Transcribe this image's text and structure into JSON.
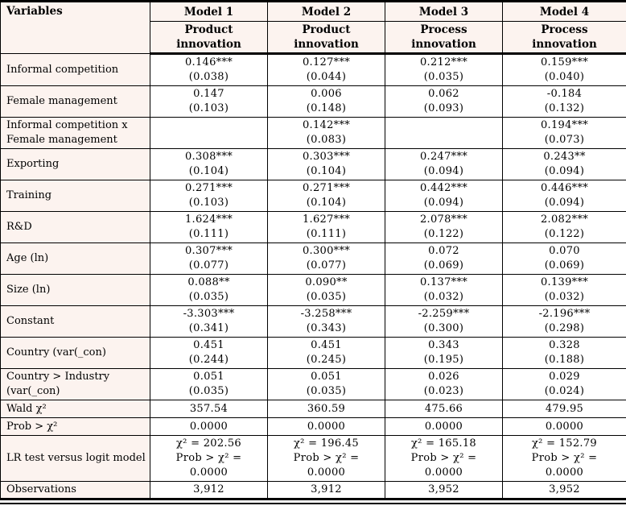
{
  "colors": {
    "label_background": "#fcf3ef",
    "data_background": "#ffffff",
    "border": "#000000",
    "text": "#000000"
  },
  "table": {
    "header": {
      "variables_label": "Variables",
      "models": [
        {
          "name": "Model 1",
          "outcome": [
            "Product",
            "innovation"
          ]
        },
        {
          "name": "Model 2",
          "outcome": [
            "Product",
            "innovation"
          ]
        },
        {
          "name": "Model 3",
          "outcome": [
            "Process",
            "innovation"
          ]
        },
        {
          "name": "Model 4",
          "outcome": [
            "Process",
            "innovation"
          ]
        }
      ]
    },
    "rows": [
      {
        "label": "Informal competition",
        "cells": [
          [
            "0.146***",
            "(0.038)"
          ],
          [
            "0.127***",
            "(0.044)"
          ],
          [
            "0.212***",
            "(0.035)"
          ],
          [
            "0.159***",
            "(0.040)"
          ]
        ]
      },
      {
        "label": "Female management",
        "cells": [
          [
            "0.147",
            "(0.103)"
          ],
          [
            "0.006",
            "(0.148)"
          ],
          [
            "0.062",
            "(0.093)"
          ],
          [
            "-0.184",
            "(0.132)"
          ]
        ]
      },
      {
        "label": "Informal competition x Female management",
        "cells": [
          [],
          [
            "0.142***",
            "(0.083)"
          ],
          [],
          [
            "0.194***",
            "(0.073)"
          ]
        ]
      },
      {
        "label": "Exporting",
        "cells": [
          [
            "0.308***",
            "(0.104)"
          ],
          [
            "0.303***",
            "(0.104)"
          ],
          [
            "0.247***",
            "(0.094)"
          ],
          [
            "0.243**",
            "(0.094)"
          ]
        ]
      },
      {
        "label": "Training",
        "cells": [
          [
            "0.271***",
            "(0.103)"
          ],
          [
            "0.271***",
            "(0.104)"
          ],
          [
            "0.442***",
            "(0.094)"
          ],
          [
            "0.446***",
            "(0.094)"
          ]
        ]
      },
      {
        "label": "R&D",
        "cells": [
          [
            "1.624***",
            "(0.111)"
          ],
          [
            "1.627***",
            "(0.111)"
          ],
          [
            "2.078***",
            "(0.122)"
          ],
          [
            "2.082***",
            "(0.122)"
          ]
        ]
      },
      {
        "label": "Age (ln)",
        "cells": [
          [
            "0.307***",
            "(0.077)"
          ],
          [
            "0.300***",
            "(0.077)"
          ],
          [
            "0.072",
            "(0.069)"
          ],
          [
            "0.070",
            "(0.069)"
          ]
        ]
      },
      {
        "label": "Size (ln)",
        "cells": [
          [
            "0.088**",
            "(0.035)"
          ],
          [
            "0.090**",
            "(0.035)"
          ],
          [
            "0.137***",
            "(0.032)"
          ],
          [
            "0.139***",
            "(0.032)"
          ]
        ]
      },
      {
        "label": "Constant",
        "cells": [
          [
            "-3.303***",
            "(0.341)"
          ],
          [
            "-3.258***",
            "(0.343)"
          ],
          [
            "-2.259***",
            "(0.300)"
          ],
          [
            "-2.196***",
            "(0.298)"
          ]
        ]
      },
      {
        "label": "Country (var(_con)",
        "cells": [
          [
            "0.451",
            "(0.244)"
          ],
          [
            "0.451",
            "(0.245)"
          ],
          [
            "0.343",
            "(0.195)"
          ],
          [
            "0.328",
            "(0.188)"
          ]
        ]
      },
      {
        "label": "Country > Industry (var(_con)",
        "cells": [
          [
            "0.051",
            "(0.035)"
          ],
          [
            "0.051",
            "(0.035)"
          ],
          [
            "0.026",
            "(0.023)"
          ],
          [
            "0.029",
            "(0.024)"
          ]
        ]
      },
      {
        "label": "Wald χ²",
        "cells": [
          [
            "357.54"
          ],
          [
            "360.59"
          ],
          [
            "475.66"
          ],
          [
            "479.95"
          ]
        ]
      },
      {
        "label": "Prob > χ²",
        "cells": [
          [
            "0.0000"
          ],
          [
            "0.0000"
          ],
          [
            "0.0000"
          ],
          [
            "0.0000"
          ]
        ]
      },
      {
        "label": "LR test versus logit model",
        "cells": [
          [
            "χ² = 202.56",
            "Prob > χ² =",
            "0.0000"
          ],
          [
            "χ² = 196.45",
            "Prob > χ² =",
            "0.0000"
          ],
          [
            "χ² = 165.18",
            "Prob > χ² =",
            "0.0000"
          ],
          [
            "χ² = 152.79",
            "Prob > χ² =",
            "0.0000"
          ]
        ]
      },
      {
        "label": "Observations",
        "cells": [
          [
            "3,912"
          ],
          [
            "3,912"
          ],
          [
            "3,952"
          ],
          [
            "3,952"
          ]
        ]
      }
    ]
  }
}
